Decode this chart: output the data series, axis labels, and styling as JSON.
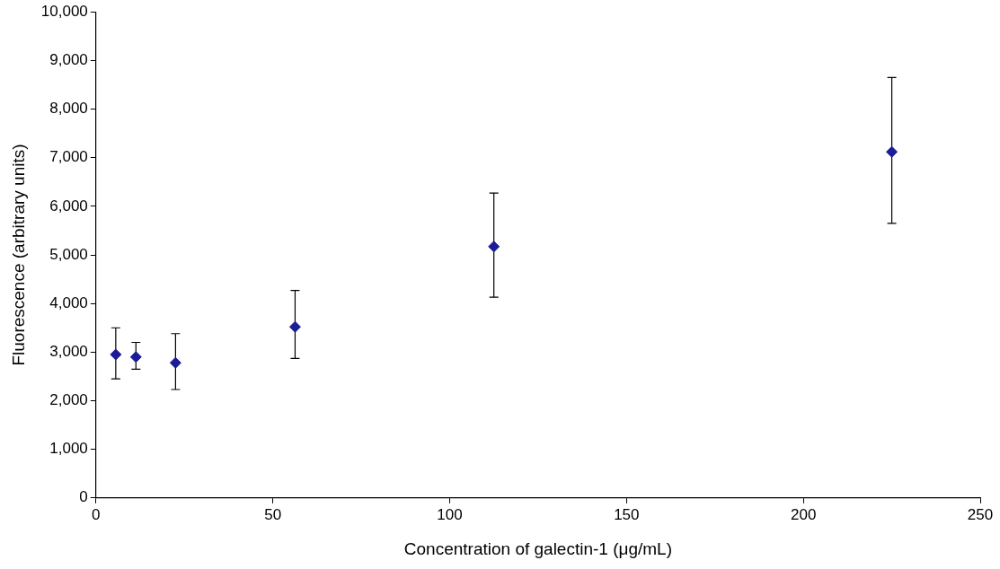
{
  "chart_data": {
    "type": "scatter",
    "xlabel": "Concentration of galectin-1 (μg/mL)",
    "ylabel": "Fluorescence (arbitrary units)",
    "x": [
      5.6,
      11.3,
      22.5,
      56.3,
      112.5,
      225
    ],
    "values": [
      2950,
      2900,
      2780,
      3520,
      5170,
      7120
    ],
    "errors": [
      [
        2450,
        3500
      ],
      [
        2650,
        3200
      ],
      [
        2230,
        3380
      ],
      [
        2870,
        4270
      ],
      [
        4130,
        6270
      ],
      [
        5650,
        8650
      ]
    ],
    "color": "#1c1c99",
    "marker": "diamond",
    "grid": false,
    "legend": false,
    "xlim": [
      0,
      250
    ],
    "xticks": [
      0,
      50,
      100,
      150,
      200,
      250
    ],
    "ylim": [
      0,
      10000
    ],
    "yticks": [
      0,
      {
        "value": 1000,
        "label": "1,000"
      },
      {
        "value": 2000,
        "label": "2,000"
      },
      {
        "value": 3000,
        "label": "3,000"
      },
      {
        "value": 4000,
        "label": "4,000"
      },
      {
        "value": 5000,
        "label": "5,000"
      },
      {
        "value": 6000,
        "label": "6,000"
      },
      {
        "value": 7000,
        "label": "7,000"
      },
      {
        "value": 8000,
        "label": "8,000"
      },
      {
        "value": 9000,
        "label": "9,000"
      },
      {
        "value": 10000,
        "label": "10,000"
      }
    ]
  }
}
